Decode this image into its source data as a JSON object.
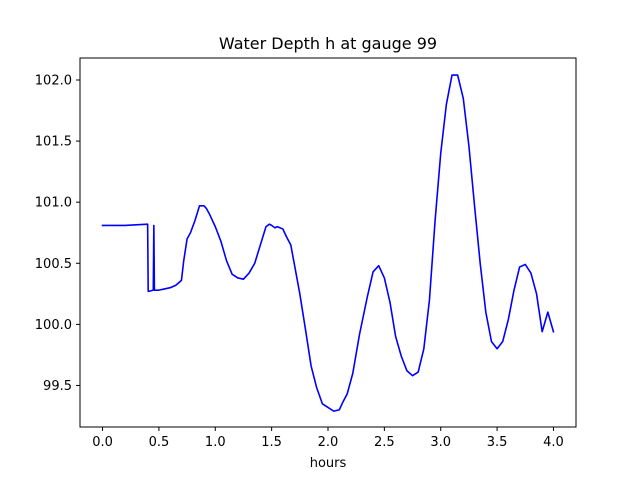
{
  "chart_data": {
    "type": "line",
    "title": "Water Depth h at gauge 99",
    "xlabel": "hours",
    "ylabel": "",
    "xlim": [
      -0.2,
      4.2
    ],
    "ylim": [
      99.16,
      102.18
    ],
    "xticks": [
      0.0,
      0.5,
      1.0,
      1.5,
      2.0,
      2.5,
      3.0,
      3.5,
      4.0
    ],
    "xtick_labels": [
      "0.0",
      "0.5",
      "1.0",
      "1.5",
      "2.0",
      "2.5",
      "3.0",
      "3.5",
      "4.0"
    ],
    "yticks": [
      99.5,
      100.0,
      100.5,
      101.0,
      101.5,
      102.0
    ],
    "ytick_labels": [
      "99.5",
      "100.0",
      "100.5",
      "101.0",
      "101.5",
      "102.0"
    ],
    "grid": false,
    "series": [
      {
        "color": "#0000ff",
        "x": [
          0.0,
          0.2,
          0.4,
          0.405,
          0.41,
          0.45,
          0.455,
          0.46,
          0.465,
          0.47,
          0.5,
          0.55,
          0.6,
          0.65,
          0.7,
          0.72,
          0.75,
          0.78,
          0.82,
          0.86,
          0.9,
          0.92,
          0.95,
          1.0,
          1.05,
          1.1,
          1.15,
          1.2,
          1.25,
          1.3,
          1.35,
          1.4,
          1.45,
          1.48,
          1.5,
          1.53,
          1.55,
          1.6,
          1.63,
          1.67,
          1.7,
          1.75,
          1.8,
          1.85,
          1.9,
          1.95,
          2.0,
          2.05,
          2.1,
          2.13,
          2.17,
          2.22,
          2.28,
          2.35,
          2.4,
          2.45,
          2.5,
          2.55,
          2.6,
          2.65,
          2.7,
          2.75,
          2.8,
          2.85,
          2.9,
          2.95,
          3.0,
          3.05,
          3.1,
          3.15,
          3.2,
          3.25,
          3.3,
          3.35,
          3.4,
          3.45,
          3.5,
          3.55,
          3.6,
          3.65,
          3.7,
          3.75,
          3.8,
          3.85,
          3.9,
          3.95,
          4.0
        ],
        "y": [
          100.81,
          100.81,
          100.82,
          100.27,
          100.27,
          100.28,
          100.81,
          100.28,
          100.28,
          100.28,
          100.28,
          100.29,
          100.3,
          100.32,
          100.36,
          100.52,
          100.7,
          100.75,
          100.85,
          100.97,
          100.97,
          100.95,
          100.9,
          100.8,
          100.68,
          100.52,
          100.41,
          100.38,
          100.37,
          100.42,
          100.5,
          100.65,
          100.8,
          100.82,
          100.81,
          100.79,
          100.8,
          100.78,
          100.72,
          100.65,
          100.5,
          100.25,
          99.96,
          99.66,
          99.48,
          99.35,
          99.32,
          99.29,
          99.3,
          99.36,
          99.43,
          99.6,
          99.92,
          100.23,
          100.43,
          100.48,
          100.38,
          100.18,
          99.9,
          99.74,
          99.62,
          99.58,
          99.61,
          99.8,
          100.2,
          100.85,
          101.4,
          101.8,
          102.04,
          102.04,
          101.85,
          101.46,
          100.97,
          100.5,
          100.1,
          99.86,
          99.8,
          99.86,
          100.04,
          100.28,
          100.47,
          100.49,
          100.42,
          100.25,
          99.94,
          100.1,
          99.94
        ]
      }
    ]
  }
}
